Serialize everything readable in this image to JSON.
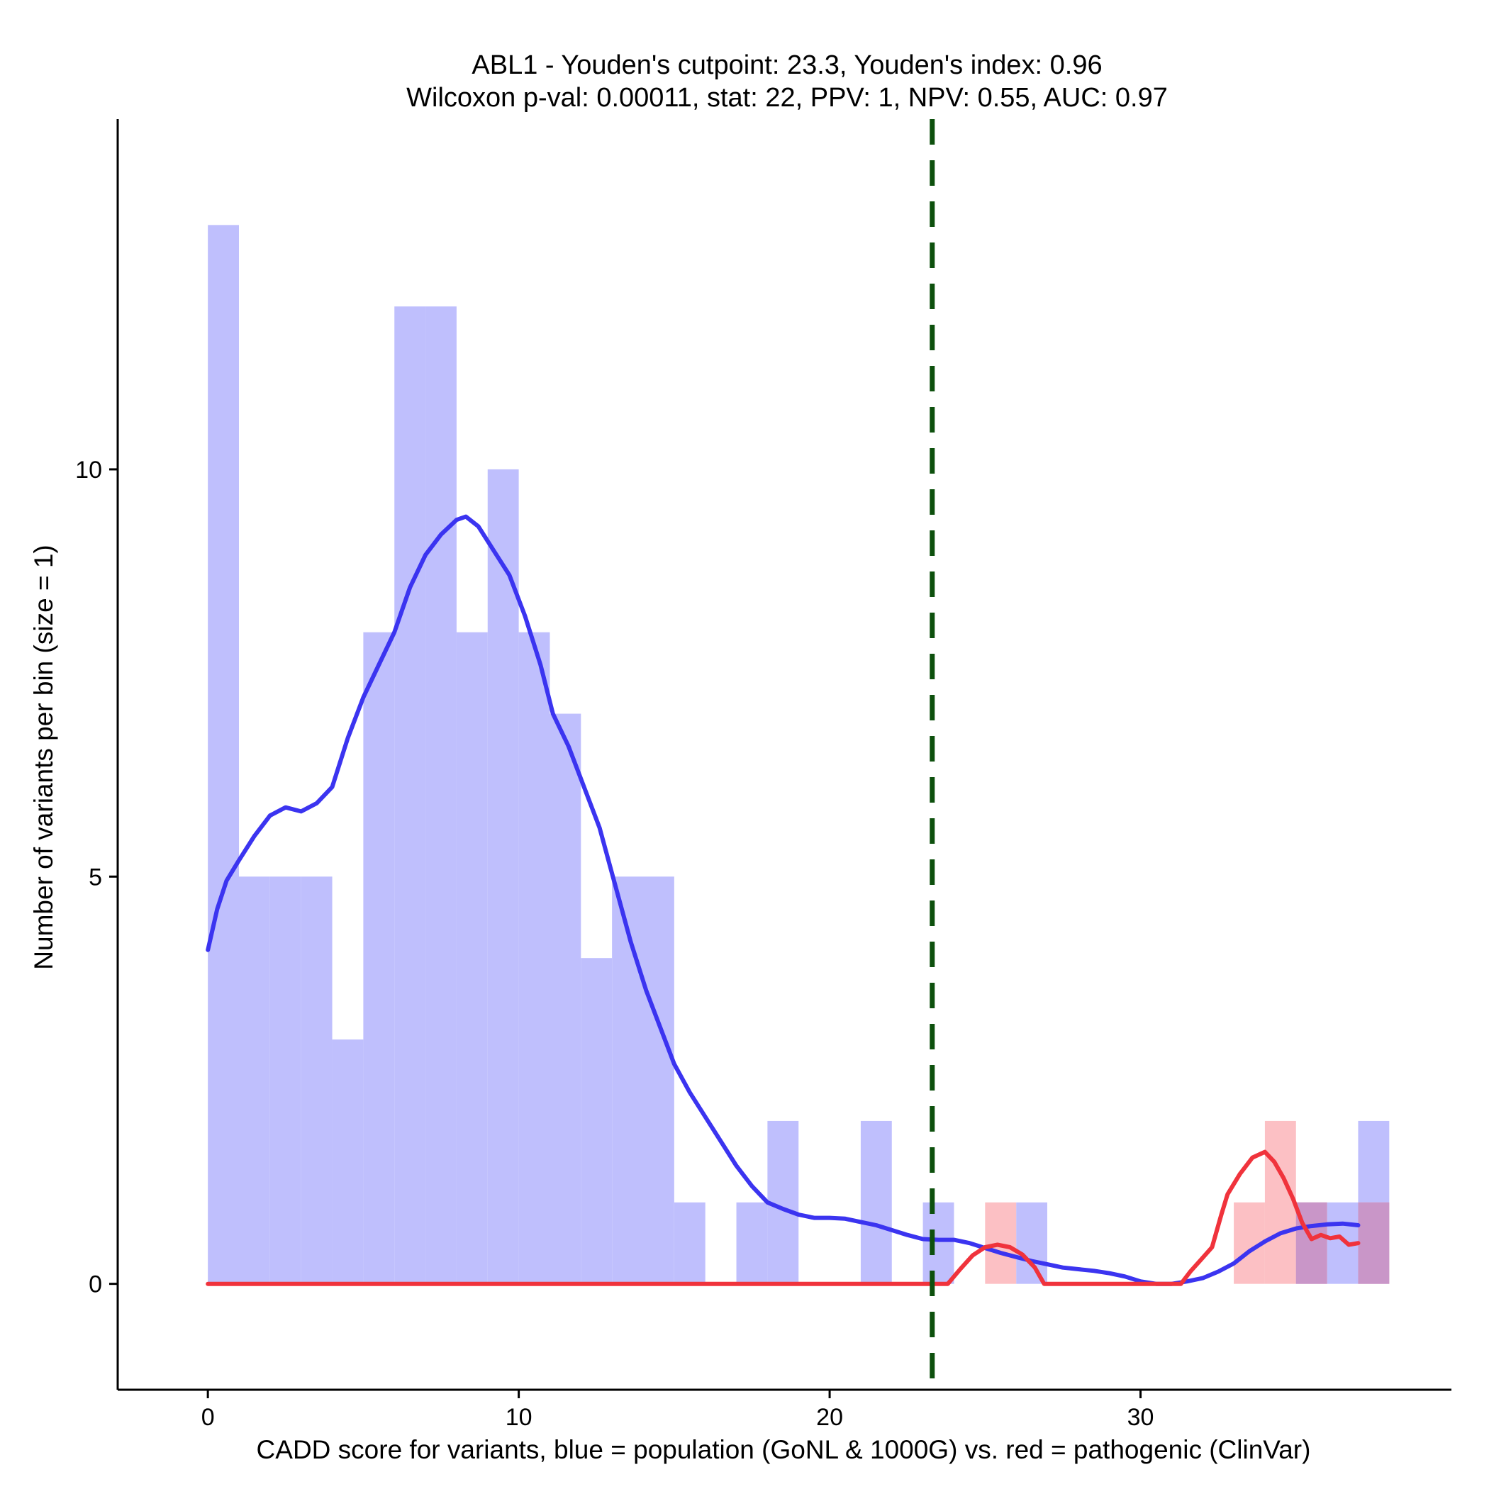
{
  "chart_data": {
    "type": "histogram",
    "title_line1": "ABL1 - Youden's cutpoint: 23.3, Youden's index: 0.96",
    "title_line2": "Wilcoxon p-val: 0.00011, stat: 22, PPV: 1, NPV: 0.55, AUC: 0.97",
    "xlabel": "CADD score for variants, blue = population (GoNL & 1000G) vs. red = pathogenic (ClinVar)",
    "ylabel": "Number of variants per bin (size = 1)",
    "xlim": [
      -2.9,
      40.0
    ],
    "ylim": [
      -1.3,
      14.3
    ],
    "x_ticks": [
      0,
      10,
      20,
      30
    ],
    "x_tick_labels": [
      "0",
      "10",
      "20",
      "30"
    ],
    "y_ticks": [
      0,
      5,
      10
    ],
    "y_tick_labels": [
      "0",
      "5",
      "10"
    ],
    "bin_size": 1,
    "cutpoint": 23.3,
    "colors": {
      "population_bar": "#bfbffd",
      "pathogenic_bar": "#fcc0c4",
      "overlap_bar": "#c996c8",
      "population_line": "#3b34f0",
      "pathogenic_line": "#f0333c",
      "cutpoint_line": "#0d500d"
    },
    "series": [
      {
        "name": "population (GoNL & 1000G)",
        "bins": [
          [
            0,
            13
          ],
          [
            1,
            5
          ],
          [
            2,
            5
          ],
          [
            3,
            5
          ],
          [
            4,
            3
          ],
          [
            5,
            8
          ],
          [
            6,
            12
          ],
          [
            7,
            12
          ],
          [
            8,
            8
          ],
          [
            9,
            10
          ],
          [
            10,
            8
          ],
          [
            11,
            7
          ],
          [
            12,
            4
          ],
          [
            13,
            5
          ],
          [
            14,
            5
          ],
          [
            15,
            1
          ],
          [
            17,
            1
          ],
          [
            18,
            2
          ],
          [
            21,
            2
          ],
          [
            23,
            1
          ],
          [
            26,
            1
          ],
          [
            35,
            1
          ],
          [
            36,
            1
          ],
          [
            37,
            2
          ]
        ],
        "density_curve": [
          [
            0,
            4.1
          ],
          [
            0.3,
            4.6
          ],
          [
            0.6,
            4.95
          ],
          [
            1,
            5.2
          ],
          [
            1.5,
            5.5
          ],
          [
            2,
            5.75
          ],
          [
            2.5,
            5.85
          ],
          [
            3,
            5.8
          ],
          [
            3.5,
            5.9
          ],
          [
            4,
            6.1
          ],
          [
            4.5,
            6.7
          ],
          [
            5,
            7.2
          ],
          [
            5.5,
            7.6
          ],
          [
            6,
            8.0
          ],
          [
            6.5,
            8.55
          ],
          [
            7,
            8.95
          ],
          [
            7.5,
            9.2
          ],
          [
            8,
            9.38
          ],
          [
            8.3,
            9.42
          ],
          [
            8.7,
            9.3
          ],
          [
            9.2,
            9.0
          ],
          [
            9.7,
            8.7
          ],
          [
            10.2,
            8.2
          ],
          [
            10.7,
            7.6
          ],
          [
            11.1,
            7.0
          ],
          [
            11.6,
            6.6
          ],
          [
            12.1,
            6.1
          ],
          [
            12.6,
            5.6
          ],
          [
            13.1,
            4.9
          ],
          [
            13.6,
            4.2
          ],
          [
            14.1,
            3.6
          ],
          [
            14.6,
            3.1
          ],
          [
            15,
            2.7
          ],
          [
            15.5,
            2.35
          ],
          [
            16,
            2.05
          ],
          [
            16.5,
            1.75
          ],
          [
            17,
            1.45
          ],
          [
            17.5,
            1.2
          ],
          [
            18,
            1.0
          ],
          [
            18.5,
            0.92
          ],
          [
            19,
            0.85
          ],
          [
            19.5,
            0.81
          ],
          [
            20,
            0.81
          ],
          [
            20.5,
            0.8
          ],
          [
            21,
            0.76
          ],
          [
            21.5,
            0.72
          ],
          [
            22,
            0.66
          ],
          [
            22.5,
            0.6
          ],
          [
            23,
            0.55
          ],
          [
            23.5,
            0.54
          ],
          [
            24,
            0.54
          ],
          [
            24.5,
            0.5
          ],
          [
            25,
            0.44
          ],
          [
            25.5,
            0.38
          ],
          [
            26,
            0.33
          ],
          [
            26.5,
            0.28
          ],
          [
            27,
            0.24
          ],
          [
            27.5,
            0.2
          ],
          [
            28,
            0.18
          ],
          [
            28.5,
            0.16
          ],
          [
            29,
            0.13
          ],
          [
            29.5,
            0.09
          ],
          [
            30,
            0.03
          ],
          [
            30.5,
            0.0
          ],
          [
            31,
            0.0
          ],
          [
            31.5,
            0.03
          ],
          [
            32,
            0.07
          ],
          [
            32.5,
            0.15
          ],
          [
            33,
            0.25
          ],
          [
            33.5,
            0.4
          ],
          [
            34,
            0.52
          ],
          [
            34.5,
            0.62
          ],
          [
            35,
            0.68
          ],
          [
            35.5,
            0.71
          ],
          [
            36,
            0.73
          ],
          [
            36.5,
            0.74
          ],
          [
            37,
            0.72
          ]
        ]
      },
      {
        "name": "pathogenic (ClinVar)",
        "bins": [
          [
            25,
            1
          ],
          [
            33,
            1
          ],
          [
            34,
            2
          ],
          [
            35,
            1
          ],
          [
            37,
            1
          ]
        ],
        "density_curve": [
          [
            0,
            0
          ],
          [
            23.8,
            0
          ],
          [
            24.2,
            0.18
          ],
          [
            24.6,
            0.35
          ],
          [
            25,
            0.45
          ],
          [
            25.4,
            0.48
          ],
          [
            25.8,
            0.45
          ],
          [
            26.2,
            0.36
          ],
          [
            26.6,
            0.2
          ],
          [
            26.9,
            0.0
          ],
          [
            31.3,
            0.0
          ],
          [
            31.6,
            0.15
          ],
          [
            32,
            0.32
          ],
          [
            32.3,
            0.45
          ],
          [
            32.6,
            0.85
          ],
          [
            32.8,
            1.1
          ],
          [
            33.2,
            1.35
          ],
          [
            33.6,
            1.55
          ],
          [
            34,
            1.62
          ],
          [
            34.3,
            1.5
          ],
          [
            34.6,
            1.3
          ],
          [
            34.9,
            1.05
          ],
          [
            35.2,
            0.75
          ],
          [
            35.5,
            0.55
          ],
          [
            35.8,
            0.6
          ],
          [
            36.1,
            0.56
          ],
          [
            36.4,
            0.58
          ],
          [
            36.7,
            0.48
          ],
          [
            37,
            0.5
          ]
        ]
      }
    ]
  }
}
